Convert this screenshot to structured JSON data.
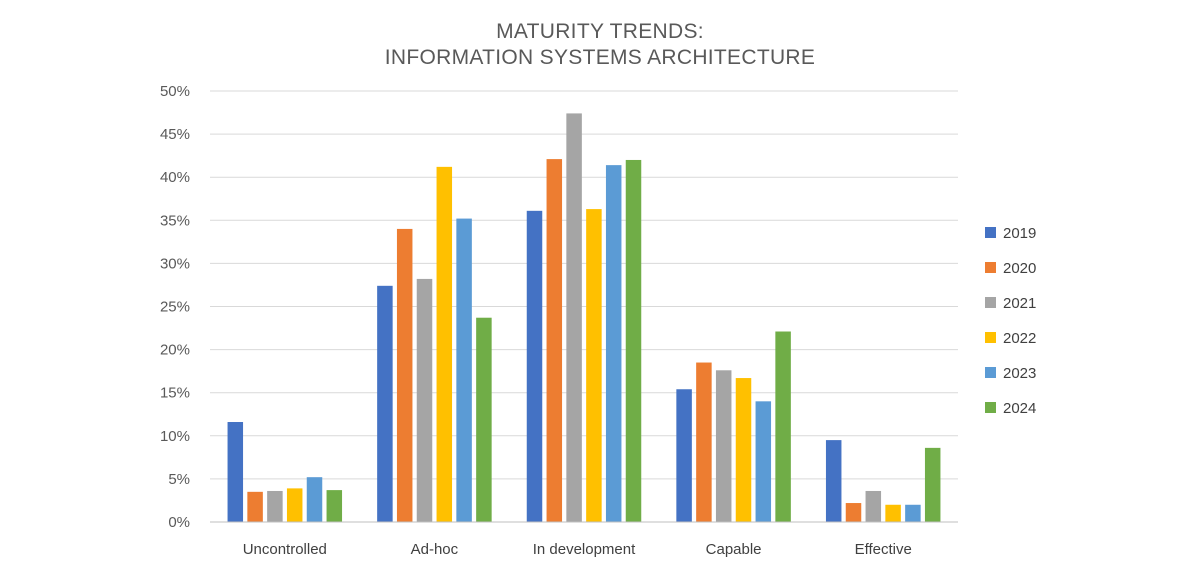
{
  "chart_data": {
    "type": "bar",
    "title_lines": [
      "MATURITY TRENDS:",
      "INFORMATION SYSTEMS ARCHITECTURE"
    ],
    "categories": [
      "Uncontrolled",
      "Ad-hoc",
      "In development",
      "Capable",
      "Effective"
    ],
    "series": [
      {
        "name": "2019",
        "color": "#4472c4",
        "values": [
          11.6,
          27.4,
          36.1,
          15.4,
          9.5
        ]
      },
      {
        "name": "2020",
        "color": "#ed7d31",
        "values": [
          3.5,
          34.0,
          42.1,
          18.5,
          2.2
        ]
      },
      {
        "name": "2021",
        "color": "#a5a5a5",
        "values": [
          3.6,
          28.2,
          47.4,
          17.6,
          3.6
        ]
      },
      {
        "name": "2022",
        "color": "#ffc000",
        "values": [
          3.9,
          41.2,
          36.3,
          16.7,
          2.0
        ]
      },
      {
        "name": "2023",
        "color": "#5b9bd5",
        "values": [
          5.2,
          35.2,
          41.4,
          14.0,
          2.0
        ]
      },
      {
        "name": "2024",
        "color": "#70ad47",
        "values": [
          3.7,
          23.7,
          42.0,
          22.1,
          8.6
        ]
      }
    ],
    "yticks": [
      "0%",
      "5%",
      "10%",
      "15%",
      "20%",
      "25%",
      "30%",
      "35%",
      "40%",
      "45%",
      "50%"
    ],
    "ylim": [
      0,
      50
    ],
    "ystep": 5,
    "xlabel": "",
    "ylabel": "",
    "grid": true,
    "legend": "right"
  }
}
